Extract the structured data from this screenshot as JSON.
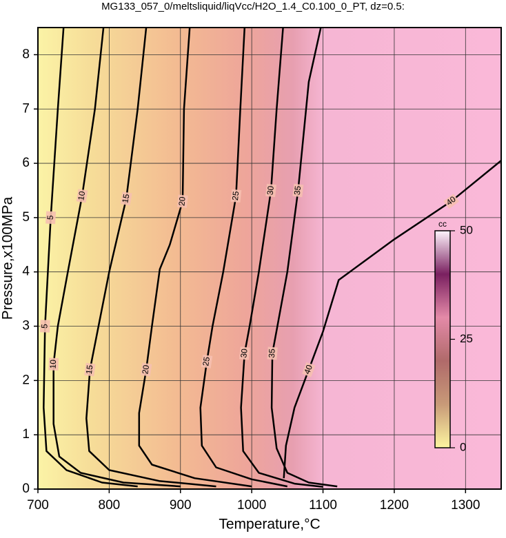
{
  "chart_data": {
    "type": "contour",
    "title": "MG133_057_0/meltsliquid/liqVcc/H2O_1.4_C0.100_0_PT, dz=0.5:",
    "x_label": "Temperature,°C",
    "y_label": "Pressure,x100MPa",
    "xlim": [
      700,
      1350
    ],
    "ylim": [
      0,
      8.5
    ],
    "xticks": [
      700,
      800,
      900,
      1000,
      1100,
      1200,
      1300
    ],
    "yticks": [
      0,
      1,
      2,
      3,
      4,
      5,
      6,
      7,
      8
    ],
    "grid": true,
    "line_color": "#000000",
    "contours": [
      {
        "level": 5,
        "x": [
          736,
          728,
          718,
          710,
          708,
          712,
          740,
          790,
          840
        ],
        "y": [
          8.5,
          7,
          5,
          3,
          1.5,
          0.7,
          0.35,
          0.12,
          0.05
        ]
      },
      {
        "level": 10,
        "x": [
          792,
          780,
          762,
          742,
          728,
          722,
          722,
          730,
          760,
          820,
          900
        ],
        "y": [
          8.5,
          7,
          5.4,
          4,
          3,
          2.3,
          1.2,
          0.6,
          0.3,
          0.12,
          0.05
        ]
      },
      {
        "level": 15,
        "x": [
          852,
          840,
          824,
          800,
          785,
          773,
          768,
          772,
          800,
          870,
          950
        ],
        "y": [
          8.5,
          7,
          5.35,
          4,
          3,
          2.2,
          1.3,
          0.7,
          0.35,
          0.15,
          0.05
        ]
      },
      {
        "level": 20,
        "x": [
          913,
          905,
          903,
          885,
          871,
          860,
          852,
          842,
          842,
          860,
          920,
          1000
        ],
        "y": [
          8.5,
          7,
          5.3,
          4.5,
          4.05,
          3,
          2.2,
          1.4,
          0.8,
          0.45,
          0.2,
          0.05
        ]
      },
      {
        "level": 25,
        "x": [
          990,
          984,
          978,
          960,
          945,
          937,
          928,
          930,
          950,
          1000,
          1050
        ],
        "y": [
          8.5,
          7,
          5.4,
          4,
          3,
          2.35,
          1.5,
          0.8,
          0.4,
          0.18,
          0.05
        ]
      },
      {
        "level": 30,
        "x": [
          1044,
          1035,
          1027,
          1010,
          997,
          990,
          985,
          988,
          1010,
          1060,
          1100
        ],
        "y": [
          8.5,
          7,
          5.5,
          4,
          3,
          2.5,
          1.5,
          0.7,
          0.3,
          0.1,
          0.04
        ]
      },
      {
        "level": 35,
        "x": [
          1097,
          1080,
          1065,
          1050,
          1036,
          1029,
          1028,
          1035,
          1050,
          1080,
          1120
        ],
        "y": [
          8.5,
          7.5,
          5.5,
          4,
          3,
          2.5,
          1.5,
          0.75,
          0.3,
          0.12,
          0.05
        ]
      },
      {
        "level": 40,
        "x": [
          1045,
          1048,
          1060,
          1080,
          1100,
          1122,
          1200,
          1280,
          1350
        ],
        "y": [
          0.2,
          0.8,
          1.5,
          2.2,
          2.9,
          3.85,
          4.6,
          5.3,
          6.05
        ]
      }
    ],
    "colorbar": {
      "label": "cc",
      "lim": [
        0,
        50
      ],
      "ticks": [
        0,
        25,
        50
      ],
      "colors": [
        "#fcf5a0",
        "#c89a78",
        "#b06a6a",
        "#e48aa8",
        "#7a2060",
        "#fff4fc"
      ]
    }
  }
}
